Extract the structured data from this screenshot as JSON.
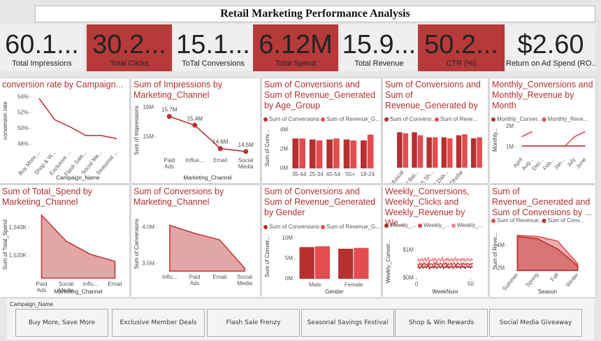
{
  "header": {
    "title": "Retail Marketing Performance Analysis"
  },
  "kpis": [
    {
      "value": "60.1...",
      "label": "Total Impressions",
      "color": "#efefef"
    },
    {
      "value": "30.2...",
      "label": "Total Clicks",
      "color": "#b73a3a"
    },
    {
      "value": "15.1...",
      "label": "ToTal Conversions",
      "color": "#efefef"
    },
    {
      "value": "6.12M",
      "label": "Total Spend",
      "color": "#b73a3a"
    },
    {
      "value": "15.9...",
      "label": "Total Revenue",
      "color": "#efefef"
    },
    {
      "value": "50.2...",
      "label": "CTR (%)",
      "color": "#b73a3a"
    },
    {
      "value": "$2.60",
      "label": "Return on Ad Spend (RO...",
      "color": "#efefef"
    }
  ],
  "chart_data": [
    {
      "type": "line",
      "title": "conversion rate by Campaign...",
      "xlabel": "Campaign_Name",
      "ylabel": "conversion rate",
      "categories": [
        "Buy More,...",
        "Shop & W...",
        "Exclusive ...",
        "Flash Sale...",
        "Social Me...",
        "Seasonal ..."
      ],
      "series": [
        {
          "color": "#c0393b",
          "values": [
            53.8,
            51.1,
            50.2,
            49.1,
            49.1,
            48.7
          ]
        }
      ],
      "ylim": [
        47.5,
        54.5
      ],
      "yticks": [
        {
          "value": 48,
          "label": "48%"
        },
        {
          "value": 50,
          "label": "50%"
        },
        {
          "value": 52,
          "label": "52%"
        },
        {
          "value": 54,
          "label": "54%"
        }
      ]
    },
    {
      "type": "line",
      "title": "Sum of Impressions by Marketing_Channel",
      "xlabel": "Marketing_Channel",
      "ylabel": "Sum of Impressions",
      "markers": true,
      "categories": [
        "Paid Ads",
        "Influe...",
        "Email",
        "Social Media"
      ],
      "series": [
        {
          "color": "#b5302f",
          "values": [
            15700000,
            15400000,
            14600000,
            14500000
          ],
          "value_labels": [
            "15.7M",
            "15.4M",
            "14.6M",
            "14.5M"
          ]
        }
      ],
      "ylim": [
        14400000,
        16050000
      ],
      "yticks": [
        {
          "value": 15000000,
          "label": "15M"
        },
        {
          "value": 16000000,
          "label": "16M"
        }
      ]
    },
    {
      "type": "bar",
      "title": "Sum of Conversions and Sum of Revenue_Generated by Age_Group",
      "ylabel": "Sum of Conv...",
      "categories": [
        "35-44",
        "25-34",
        "45-54",
        "55+",
        "18-24"
      ],
      "series": [
        {
          "name": "Sum of Conversions",
          "color": "#b5302f",
          "values": [
            3100000,
            3000000,
            3000000,
            3000000,
            2900000
          ]
        },
        {
          "name": "Sum of Revenue_G...",
          "color": "#e34d4f",
          "values": [
            3100000,
            2900000,
            3100000,
            2900000,
            3500000
          ]
        }
      ],
      "ylim": [
        0,
        4200000
      ],
      "yticks": [
        {
          "value": 0,
          "label": "0M"
        },
        {
          "value": 2000000,
          "label": "2M"
        },
        {
          "value": 4000000,
          "label": "4M"
        }
      ]
    },
    {
      "type": "bar",
      "title": "Sum of Conversions and Sum of Revenue_Generated by ...",
      "categories": [
        "Muscat",
        "Al Bat...",
        "Ash Sh...",
        "Al Dak...",
        "Dhofar",
        null
      ],
      "series": [
        {
          "name": "Sum of Conversi...",
          "color": "#b5302f",
          "values": [
            3500000,
            3500000,
            3000000,
            3000000,
            3200000,
            2900000
          ]
        },
        {
          "name": "Sum of Reve...",
          "color": "#e34d4f",
          "values": [
            3400000,
            3200000,
            3000000,
            2900000,
            3300000,
            3000000
          ]
        }
      ],
      "ylim": [
        0,
        4000000
      ],
      "yticks": []
    },
    {
      "type": "line",
      "title": "Monthly_Conversions and Monthly_Revenue by Month",
      "ylabel": "Monthly...",
      "categories": [
        "April",
        "Aug...",
        "Dec...",
        "Feb...",
        "Jan...",
        "July",
        "June"
      ],
      "series": [
        {
          "name": "Monthly_Conver...",
          "color": "#b5302f",
          "values": [
            1050000,
            1050000,
            1050000,
            1050000,
            1050000,
            1050000,
            1050000
          ]
        },
        {
          "name": "Monthly_Reve...",
          "color": "#e34d4f",
          "values": [
            1500000,
            1750000,
            null,
            null,
            1000000,
            1500000,
            1750000
          ]
        }
      ],
      "ylim": [
        600000,
        2100000
      ],
      "yticks": [
        {
          "value": 1000000,
          "label": "1M"
        },
        {
          "value": 2000000,
          "label": "2M"
        }
      ]
    },
    {
      "type": "area",
      "title": "Sum of Total_Spend by Marketing_Channel",
      "xlabel": "Marketing_Channel",
      "ylabel": "Sum of Total_Spend",
      "categories": [
        "Paid Ads",
        "Social Media",
        "Influ...",
        "Email"
      ],
      "series": [
        {
          "color": "#c0393b",
          "values": [
            1549000,
            1530500,
            1521000,
            1516000
          ]
        }
      ],
      "ylim": [
        1504000,
        1552000
      ],
      "yticks": [
        {
          "value": 1520000,
          "label": "1,520K"
        },
        {
          "value": 1540000,
          "label": "1,540K"
        }
      ]
    },
    {
      "type": "area",
      "title": "Sum of Conversions by Marketing_Channel",
      "ylabel": "Sum of Conversions",
      "categories": [
        "Influ...",
        "Paid Ads",
        "Email",
        "Social Media"
      ],
      "series": [
        {
          "color": "#c0393b",
          "values": [
            4030000,
            3920000,
            3830000,
            3440000
          ]
        }
      ],
      "ylim": [
        3400000,
        4150000
      ],
      "yticks": [
        {
          "value": 3500000,
          "label": "3.5M"
        },
        {
          "value": 4000000,
          "label": "4.0M"
        }
      ]
    },
    {
      "type": "bar",
      "title": "Sum of Conversions and Sum of Revenue_Generated by Gender",
      "xlabel": "Gender",
      "ylabel": "Sum of Conver...",
      "categories": [
        "Male",
        "Female"
      ],
      "series": [
        {
          "name": "Sum of Conversions",
          "color": "#b5302f",
          "values": [
            7800000,
            7400000
          ]
        },
        {
          "name": "Sum of Revenue_G...",
          "color": "#e34d4f",
          "values": [
            8000000,
            7600000
          ]
        }
      ],
      "ylim": [
        0,
        11000000
      ],
      "yticks": [
        {
          "value": 0,
          "label": "0M"
        },
        {
          "value": 5000000,
          "label": "5M"
        },
        {
          "value": 10000000,
          "label": "10M"
        }
      ]
    },
    {
      "type": "line",
      "title": "Weekly_Conversions, Weekly_Clicks and Weekly_Revenue by We...",
      "xlabel": "WeekNum",
      "ylabel": "Weekly_Conver...",
      "x": [
        1,
        2,
        3,
        4,
        5,
        6,
        7,
        8,
        9,
        10,
        11,
        12,
        13,
        14,
        15,
        16,
        17,
        18,
        19,
        20,
        21,
        22,
        23,
        24,
        25,
        26,
        27,
        28,
        29,
        30,
        31,
        32,
        33,
        34,
        35,
        36,
        37,
        38,
        39,
        40,
        41,
        42,
        43,
        44,
        45,
        46,
        47,
        48,
        49,
        50,
        51,
        52
      ],
      "series": [
        {
          "name": "Weekly_...",
          "color": "#a52a2a",
          "values": [
            380000,
            420000,
            350000,
            400000,
            440000,
            360000,
            390000,
            430000,
            370000,
            410000,
            450000,
            340000,
            400000,
            380000,
            420000,
            360000,
            440000,
            390000,
            350000,
            410000,
            430000,
            370000,
            400000,
            460000,
            350000,
            390000,
            420000,
            380000,
            440000,
            360000,
            410000,
            390000,
            430000,
            350000,
            400000,
            450000,
            370000,
            420000,
            380000,
            410000,
            360000,
            440000,
            390000,
            420000,
            350000,
            400000,
            430000,
            380000,
            410000,
            370000,
            420000,
            390000
          ]
        },
        {
          "name": "Weekly_...",
          "color": "#d9403f",
          "values": [
            500000,
            460000,
            530000,
            480000,
            520000,
            470000,
            550000,
            490000,
            510000,
            460000,
            540000,
            480000,
            520000,
            500000,
            470000,
            530000,
            490000,
            560000,
            470000,
            510000,
            480000,
            540000,
            500000,
            470000,
            530000,
            490000,
            550000,
            460000,
            520000,
            500000,
            480000,
            540000,
            470000,
            510000,
            530000,
            490000,
            460000,
            550000,
            500000,
            480000,
            520000,
            470000,
            540000,
            490000,
            510000,
            480000,
            530000,
            500000,
            460000,
            520000,
            490000,
            540000
          ]
        },
        {
          "name": "Weekly_...",
          "color": "#f08080",
          "values": [
            620000,
            680000,
            590000,
            650000,
            700000,
            610000,
            660000,
            720000,
            600000,
            670000,
            730000,
            580000,
            650000,
            640000,
            690000,
            600000,
            710000,
            650000,
            590000,
            670000,
            700000,
            620000,
            660000,
            740000,
            590000,
            650000,
            690000,
            630000,
            710000,
            610000,
            670000,
            640000,
            700000,
            590000,
            660000,
            730000,
            620000,
            690000,
            640000,
            670000,
            610000,
            710000,
            650000,
            690000,
            600000,
            660000,
            700000,
            640000,
            680000,
            620000,
            690000,
            650000
          ]
        }
      ],
      "xlim": [
        0,
        53
      ],
      "xticks": [
        0,
        50
      ],
      "ylim": [
        0,
        1200000
      ],
      "yticks": [
        {
          "value": 0,
          "label": "$0M"
        },
        {
          "value": 1000000,
          "label": "$1M"
        }
      ]
    },
    {
      "type": "area",
      "title": "Sum of Revenue_Generated and Sum of Conversions by ...",
      "xlabel": "Season",
      "ylabel": "Sum of Reve...",
      "categories": [
        "Summer",
        "Spring",
        "Fall",
        "Winter"
      ],
      "series": [
        {
          "name": "Sum of Revenue...",
          "color": "#e34d4f",
          "values": [
            4900000,
            4800000,
            4400000,
            2400000
          ]
        },
        {
          "name": "Sum of Conv...",
          "color": "#b5302f",
          "values": [
            4800000,
            4600000,
            3700000,
            2200000
          ]
        }
      ],
      "ylim": [
        1800000,
        5200000
      ],
      "yticks": [
        {
          "value": 2000000,
          "label": "2M"
        },
        {
          "value": 4000000,
          "label": "4M"
        }
      ]
    }
  ],
  "slicer": {
    "title": "Campaign_Name",
    "options": [
      "Buy More, Save More",
      "Exclusive Member Deals",
      "Flash Sale Frenzy",
      "Seasonal Savings Festival",
      "Shop & Win Rewards",
      "Social Media Giveaway"
    ]
  }
}
